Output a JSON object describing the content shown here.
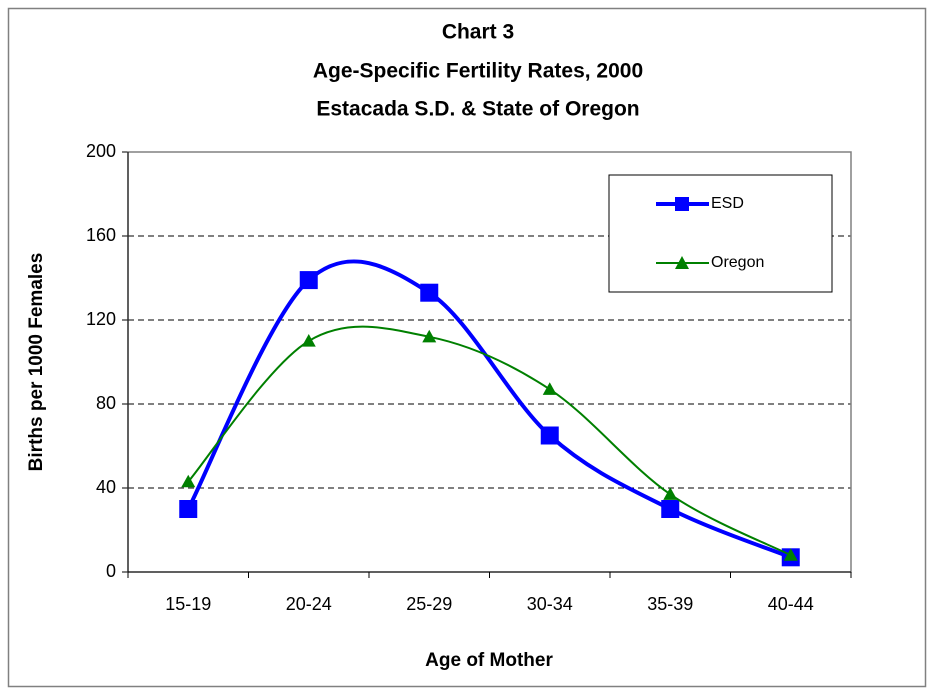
{
  "chart_data": {
    "type": "line",
    "title": [
      "Chart 3",
      "Age-Specific Fertility Rates, 2000",
      "Estacada S.D. & State of Oregon"
    ],
    "x_label": "Age of Mother",
    "y_label": "Births per 1000 Females",
    "categories": [
      "15-19",
      "20-24",
      "25-29",
      "30-34",
      "35-39",
      "40-44"
    ],
    "series": [
      {
        "name": "ESD",
        "color": "#0000ff",
        "marker": "square",
        "values": [
          30,
          139,
          133,
          65,
          30,
          7
        ]
      },
      {
        "name": "Oregon",
        "color": "#008000",
        "marker": "triangle",
        "values": [
          43,
          110,
          112,
          87,
          37,
          8
        ]
      }
    ],
    "ylim": [
      0,
      200
    ],
    "yticks": [
      0,
      40,
      80,
      120,
      160,
      200
    ],
    "grid": true,
    "smooth": true,
    "legend": "upper right"
  }
}
